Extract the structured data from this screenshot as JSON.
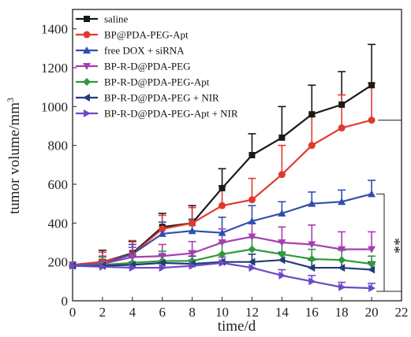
{
  "chart_data": {
    "type": "line",
    "title": "",
    "xlabel": "time/d",
    "ylabel_text": "tumor volume/mm",
    "ylabel_sup": "3",
    "xlim": [
      0,
      22
    ],
    "ylim": [
      0,
      1500
    ],
    "x_ticks": [
      0,
      2,
      4,
      6,
      8,
      10,
      12,
      14,
      16,
      18,
      20,
      22
    ],
    "y_ticks": [
      0,
      200,
      400,
      600,
      800,
      1000,
      1200,
      1400
    ],
    "x_tick_labels": [
      "0",
      "2",
      "4",
      "6",
      "8",
      "10",
      "12",
      "14",
      "16",
      "18",
      "20",
      "22"
    ],
    "y_tick_labels": [
      "0",
      "200",
      "400",
      "600",
      "800",
      "1000",
      "1200",
      "1400"
    ],
    "grid": false,
    "legend_position": "top-left",
    "x": [
      0,
      2,
      4,
      6,
      8,
      10,
      12,
      14,
      16,
      18,
      20
    ],
    "series": [
      {
        "name": "saline",
        "color": "#1a1a1a",
        "marker": "square",
        "values": [
          185,
          200,
          245,
          380,
          400,
          580,
          750,
          840,
          960,
          1010,
          1110
        ],
        "errors": [
          20,
          60,
          60,
          70,
          90,
          100,
          110,
          160,
          150,
          170,
          210
        ]
      },
      {
        "name": "BP@PDA-PEG-Apt",
        "color": "#e03a2f",
        "marker": "circle",
        "values": [
          185,
          200,
          240,
          370,
          400,
          490,
          520,
          650,
          800,
          890,
          930
        ],
        "errors": [
          20,
          50,
          70,
          70,
          80,
          100,
          110,
          150,
          150,
          170,
          190
        ]
      },
      {
        "name": "free DOX + siRNA",
        "color": "#2f4fb0",
        "marker": "triangle-up",
        "values": [
          185,
          190,
          240,
          345,
          360,
          350,
          410,
          450,
          500,
          510,
          550
        ],
        "errors": [
          20,
          40,
          50,
          60,
          60,
          80,
          80,
          60,
          60,
          60,
          70
        ]
      },
      {
        "name": "BP-R-D@PDA-PEG",
        "color": "#a63eb3",
        "marker": "triangle-down",
        "values": [
          185,
          190,
          225,
          230,
          245,
          300,
          330,
          300,
          290,
          265,
          265
        ],
        "errors": [
          20,
          40,
          50,
          60,
          60,
          70,
          70,
          80,
          100,
          90,
          90
        ]
      },
      {
        "name": "BP-R-D@PDA-PEG-Apt",
        "color": "#2e9a3a",
        "marker": "diamond",
        "values": [
          180,
          185,
          195,
          205,
          205,
          240,
          265,
          240,
          215,
          210,
          190
        ],
        "errors": [
          20,
          40,
          40,
          50,
          50,
          60,
          60,
          60,
          50,
          50,
          40
        ]
      },
      {
        "name": "BP-R-D@PDA-PEG + NIR",
        "color": "#243a7a",
        "marker": "triangle-left",
        "values": [
          180,
          180,
          185,
          195,
          190,
          200,
          200,
          210,
          170,
          170,
          160
        ],
        "errors": [
          20,
          30,
          40,
          40,
          40,
          40,
          40,
          40,
          40,
          40,
          40
        ]
      },
      {
        "name": "BP-R-D@PDA-PEG-Apt + NIR",
        "color": "#6b49c8",
        "marker": "triangle-right",
        "values": [
          180,
          175,
          170,
          170,
          180,
          195,
          170,
          130,
          100,
          70,
          65
        ],
        "errors": [
          20,
          30,
          30,
          30,
          30,
          30,
          30,
          30,
          30,
          25,
          25
        ]
      }
    ],
    "annotations": [
      {
        "text": "***",
        "bracket_between": [
          "saline",
          "BP-R-D@PDA-PEG-Apt + NIR"
        ],
        "at_x": 20
      },
      {
        "text": "**",
        "bracket_between": [
          "free DOX + siRNA",
          "BP-R-D@PDA-PEG-Apt + NIR"
        ],
        "at_x": 20
      }
    ]
  }
}
